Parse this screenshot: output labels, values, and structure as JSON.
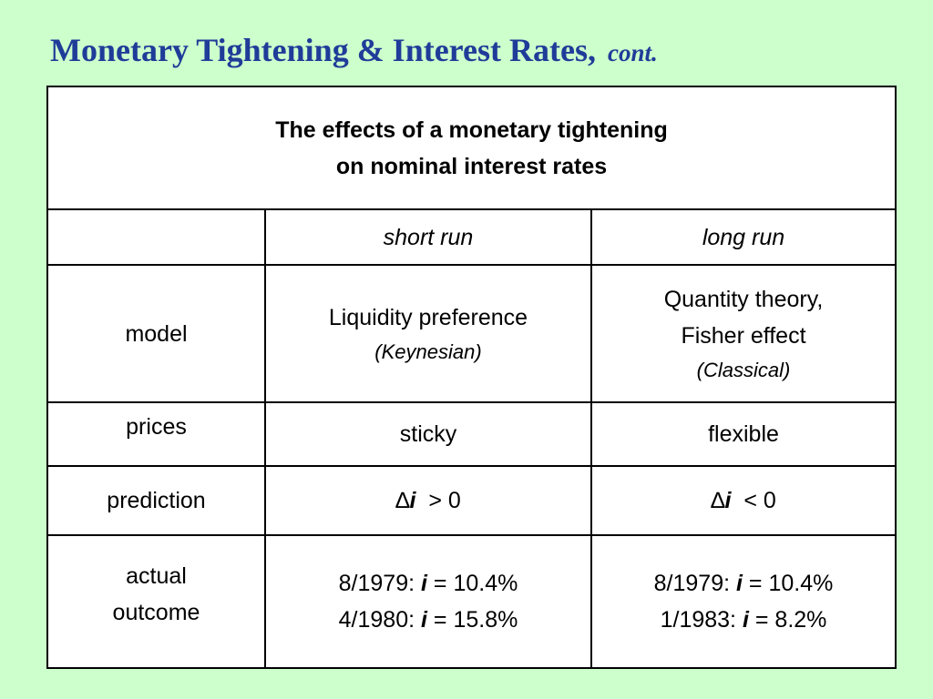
{
  "title": {
    "main": "Monetary Tightening & Interest Rates,",
    "suffix": "cont."
  },
  "table": {
    "heading_line1": "The effects of a monetary tightening",
    "heading_line2": "on nominal interest rates",
    "col_short": "short run",
    "col_long": "long run",
    "rows": {
      "model": {
        "label": "model",
        "short_line1": "Liquidity preference",
        "short_sub": "(Keynesian)",
        "long_line1": "Quantity theory,",
        "long_line2": "Fisher effect",
        "long_sub": "(Classical)"
      },
      "prices": {
        "label": "prices",
        "short": "sticky",
        "long": "flexible"
      },
      "prediction": {
        "label": "prediction",
        "delta": "∆",
        "var": "i",
        "short_rel": "> 0",
        "long_rel": "< 0"
      },
      "outcome": {
        "label_line1": "actual",
        "label_line2": "outcome",
        "var": "i",
        "short_1_date": "8/1979:",
        "short_1_val": "= 10.4%",
        "short_2_date": "4/1980:",
        "short_2_val": "= 15.8%",
        "long_1_date": "8/1979:",
        "long_1_val": "= 10.4%",
        "long_2_date": "1/1983:",
        "long_2_val": "= 8.2%"
      }
    }
  }
}
